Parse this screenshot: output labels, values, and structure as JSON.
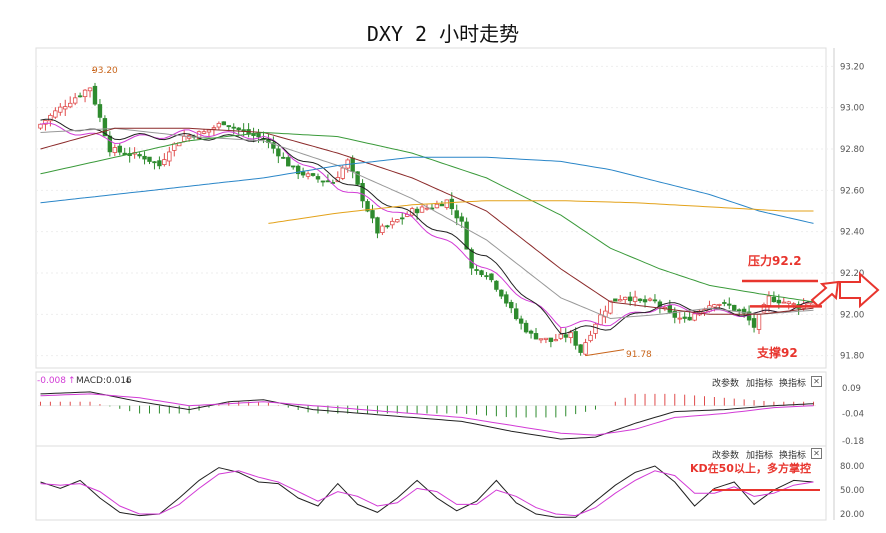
{
  "title": "DXY 2 小时走势",
  "main_panel": {
    "price_ticks": [
      "93.20",
      "93.00",
      "92.80",
      "92.60",
      "92.40",
      "92.20",
      "92.00",
      "91.80"
    ],
    "ylim": [
      91.75,
      93.25
    ],
    "high_marker": "93.20",
    "low_marker": "91.78",
    "resistance_label": "压力92.2",
    "support_label": "支撑92",
    "resistance_level": 92.2,
    "support_level": 92.0
  },
  "macd_panel": {
    "label_left": "-0.008",
    "label_macd": "MACD:0.016",
    "ticks": [
      "0.09",
      "-0.04",
      "-0.18"
    ]
  },
  "kd_panel": {
    "ticks": [
      "80.00",
      "50.00",
      "20.00"
    ],
    "annotation": "KD在50以上，多方掌控",
    "line_level": 50
  },
  "controls": {
    "params": "改参数",
    "add_indicator": "加指标",
    "switch_indicator": "换指标",
    "close": "✕"
  },
  "colors": {
    "up": "#e04b4b",
    "down": "#2e8b2e",
    "annotation": "#e8352e",
    "ma_short": "#d23bd6",
    "ma_black": "#222222",
    "ma_gray": "#999999",
    "ma_brown": "#8b2a2a",
    "ma_green": "#3a9a3a",
    "ma_blue": "#2a86c8",
    "ma_gold": "#e3a21a"
  },
  "chart_data": {
    "type": "candlestick",
    "price_anchors": [
      [
        0,
        92.9
      ],
      [
        4,
        92.98
      ],
      [
        8,
        93.05
      ],
      [
        11,
        93.1
      ],
      [
        13,
        92.95
      ],
      [
        15,
        92.8
      ],
      [
        18,
        92.78
      ],
      [
        22,
        92.76
      ],
      [
        25,
        92.72
      ],
      [
        27,
        92.8
      ],
      [
        30,
        92.86
      ],
      [
        34,
        92.88
      ],
      [
        38,
        92.93
      ],
      [
        42,
        92.88
      ],
      [
        46,
        92.85
      ],
      [
        49,
        92.78
      ],
      [
        52,
        92.7
      ],
      [
        56,
        92.66
      ],
      [
        60,
        92.64
      ],
      [
        63,
        92.74
      ],
      [
        66,
        92.56
      ],
      [
        69,
        92.4
      ],
      [
        72,
        92.44
      ],
      [
        76,
        92.5
      ],
      [
        80,
        92.52
      ],
      [
        83,
        92.55
      ],
      [
        86,
        92.44
      ],
      [
        88,
        92.22
      ],
      [
        91,
        92.2
      ],
      [
        94,
        92.1
      ],
      [
        97,
        91.98
      ],
      [
        100,
        91.9
      ],
      [
        104,
        91.87
      ],
      [
        106,
        91.89
      ],
      [
        108,
        91.9
      ],
      [
        110,
        91.82
      ],
      [
        113,
        91.96
      ],
      [
        116,
        92.06
      ],
      [
        119,
        92.09
      ],
      [
        122,
        92.06
      ],
      [
        125,
        92.06
      ],
      [
        128,
        92.0
      ],
      [
        131,
        91.97
      ],
      [
        134,
        92.02
      ],
      [
        137,
        92.06
      ],
      [
        140,
        92.04
      ],
      [
        143,
        92.0
      ],
      [
        145,
        91.94
      ],
      [
        148,
        92.08
      ],
      [
        151,
        92.06
      ],
      [
        154,
        92.04
      ],
      [
        156,
        92.06
      ]
    ],
    "candle_count": 157,
    "series": [
      {
        "role": "ma_short",
        "values": [
          [
            0,
            92.92
          ],
          [
            15,
            92.84
          ],
          [
            30,
            92.88
          ],
          [
            45,
            92.86
          ],
          [
            60,
            92.62
          ],
          [
            75,
            92.46
          ],
          [
            90,
            92.22
          ],
          [
            105,
            91.95
          ],
          [
            115,
            91.96
          ],
          [
            125,
            92.04
          ],
          [
            135,
            92.01
          ],
          [
            145,
            92.0
          ],
          [
            156,
            92.05
          ]
        ]
      },
      {
        "role": "ma_black",
        "values": [
          [
            0,
            92.94
          ],
          [
            15,
            92.86
          ],
          [
            30,
            92.86
          ],
          [
            45,
            92.85
          ],
          [
            60,
            92.66
          ],
          [
            75,
            92.48
          ],
          [
            90,
            92.28
          ],
          [
            105,
            91.92
          ],
          [
            115,
            91.94
          ],
          [
            125,
            92.05
          ],
          [
            135,
            92.02
          ],
          [
            145,
            92.0
          ],
          [
            156,
            92.05
          ]
        ]
      },
      {
        "role": "ma_gray",
        "values": [
          [
            0,
            92.88
          ],
          [
            15,
            92.9
          ],
          [
            30,
            92.86
          ],
          [
            45,
            92.84
          ],
          [
            60,
            92.72
          ],
          [
            75,
            92.56
          ],
          [
            90,
            92.36
          ],
          [
            105,
            92.08
          ],
          [
            115,
            91.98
          ],
          [
            125,
            92.0
          ],
          [
            135,
            92.03
          ],
          [
            145,
            92.0
          ],
          [
            156,
            92.02
          ]
        ]
      },
      {
        "role": "ma_brown",
        "values": [
          [
            0,
            92.8
          ],
          [
            15,
            92.9
          ],
          [
            30,
            92.9
          ],
          [
            45,
            92.88
          ],
          [
            60,
            92.78
          ],
          [
            75,
            92.66
          ],
          [
            90,
            92.5
          ],
          [
            105,
            92.22
          ],
          [
            115,
            92.06
          ],
          [
            125,
            92.03
          ],
          [
            135,
            92.0
          ],
          [
            145,
            92.0
          ],
          [
            156,
            92.03
          ]
        ]
      },
      {
        "role": "ma_green",
        "values": [
          [
            0,
            92.68
          ],
          [
            15,
            92.76
          ],
          [
            30,
            92.84
          ],
          [
            45,
            92.88
          ],
          [
            60,
            92.86
          ],
          [
            75,
            92.78
          ],
          [
            90,
            92.66
          ],
          [
            105,
            92.48
          ],
          [
            115,
            92.32
          ],
          [
            125,
            92.22
          ],
          [
            135,
            92.14
          ],
          [
            145,
            92.1
          ],
          [
            156,
            92.06
          ]
        ]
      },
      {
        "role": "ma_blue",
        "values": [
          [
            0,
            92.54
          ],
          [
            15,
            92.58
          ],
          [
            30,
            92.62
          ],
          [
            45,
            92.66
          ],
          [
            60,
            92.72
          ],
          [
            75,
            92.76
          ],
          [
            90,
            92.76
          ],
          [
            105,
            92.74
          ],
          [
            115,
            92.7
          ],
          [
            125,
            92.64
          ],
          [
            135,
            92.58
          ],
          [
            145,
            92.5
          ],
          [
            156,
            92.44
          ]
        ]
      },
      {
        "role": "ma_gold",
        "values": [
          [
            46,
            92.44
          ],
          [
            60,
            92.49
          ],
          [
            75,
            92.53
          ],
          [
            90,
            92.55
          ],
          [
            105,
            92.55
          ],
          [
            120,
            92.54
          ],
          [
            135,
            92.52
          ],
          [
            150,
            92.5
          ],
          [
            156,
            92.5
          ]
        ]
      }
    ],
    "macd": {
      "dif": [
        [
          0,
          0.06
        ],
        [
          10,
          0.07
        ],
        [
          20,
          0.02
        ],
        [
          30,
          -0.02
        ],
        [
          38,
          0.02
        ],
        [
          45,
          0.03
        ],
        [
          55,
          -0.02
        ],
        [
          65,
          -0.04
        ],
        [
          75,
          -0.06
        ],
        [
          85,
          -0.08
        ],
        [
          95,
          -0.13
        ],
        [
          105,
          -0.17
        ],
        [
          112,
          -0.16
        ],
        [
          120,
          -0.09
        ],
        [
          128,
          -0.03
        ],
        [
          138,
          -0.02
        ],
        [
          148,
          0.0
        ],
        [
          156,
          0.01
        ]
      ],
      "dea": [
        [
          0,
          0.05
        ],
        [
          10,
          0.06
        ],
        [
          20,
          0.04
        ],
        [
          30,
          0.0
        ],
        [
          38,
          0.01
        ],
        [
          45,
          0.02
        ],
        [
          55,
          0.0
        ],
        [
          65,
          -0.02
        ],
        [
          75,
          -0.04
        ],
        [
          85,
          -0.06
        ],
        [
          95,
          -0.1
        ],
        [
          105,
          -0.14
        ],
        [
          112,
          -0.15
        ],
        [
          120,
          -0.12
        ],
        [
          128,
          -0.06
        ],
        [
          138,
          -0.04
        ],
        [
          148,
          -0.01
        ],
        [
          156,
          0.0
        ]
      ]
    },
    "kd": {
      "k": [
        [
          0,
          60
        ],
        [
          4,
          52
        ],
        [
          8,
          62
        ],
        [
          12,
          40
        ],
        [
          16,
          22
        ],
        [
          20,
          18
        ],
        [
          24,
          20
        ],
        [
          28,
          40
        ],
        [
          32,
          62
        ],
        [
          36,
          78
        ],
        [
          40,
          72
        ],
        [
          44,
          60
        ],
        [
          48,
          58
        ],
        [
          52,
          40
        ],
        [
          56,
          30
        ],
        [
          60,
          58
        ],
        [
          64,
          32
        ],
        [
          68,
          22
        ],
        [
          72,
          40
        ],
        [
          76,
          62
        ],
        [
          80,
          40
        ],
        [
          84,
          24
        ],
        [
          88,
          36
        ],
        [
          92,
          62
        ],
        [
          96,
          34
        ],
        [
          100,
          20
        ],
        [
          104,
          16
        ],
        [
          108,
          16
        ],
        [
          112,
          36
        ],
        [
          116,
          56
        ],
        [
          120,
          72
        ],
        [
          124,
          80
        ],
        [
          128,
          60
        ],
        [
          132,
          30
        ],
        [
          136,
          52
        ],
        [
          140,
          60
        ],
        [
          144,
          32
        ],
        [
          148,
          50
        ],
        [
          152,
          62
        ],
        [
          156,
          60
        ]
      ],
      "d": [
        [
          0,
          58
        ],
        [
          4,
          56
        ],
        [
          8,
          58
        ],
        [
          12,
          48
        ],
        [
          16,
          30
        ],
        [
          20,
          20
        ],
        [
          24,
          20
        ],
        [
          28,
          32
        ],
        [
          32,
          52
        ],
        [
          36,
          70
        ],
        [
          40,
          74
        ],
        [
          44,
          66
        ],
        [
          48,
          60
        ],
        [
          52,
          48
        ],
        [
          56,
          36
        ],
        [
          60,
          48
        ],
        [
          64,
          42
        ],
        [
          68,
          30
        ],
        [
          72,
          34
        ],
        [
          76,
          52
        ],
        [
          80,
          48
        ],
        [
          84,
          32
        ],
        [
          88,
          32
        ],
        [
          92,
          50
        ],
        [
          96,
          42
        ],
        [
          100,
          28
        ],
        [
          104,
          20
        ],
        [
          108,
          18
        ],
        [
          112,
          28
        ],
        [
          116,
          46
        ],
        [
          120,
          62
        ],
        [
          124,
          74
        ],
        [
          128,
          68
        ],
        [
          132,
          46
        ],
        [
          136,
          46
        ],
        [
          140,
          54
        ],
        [
          144,
          42
        ],
        [
          148,
          46
        ],
        [
          152,
          56
        ],
        [
          156,
          60
        ]
      ]
    }
  }
}
